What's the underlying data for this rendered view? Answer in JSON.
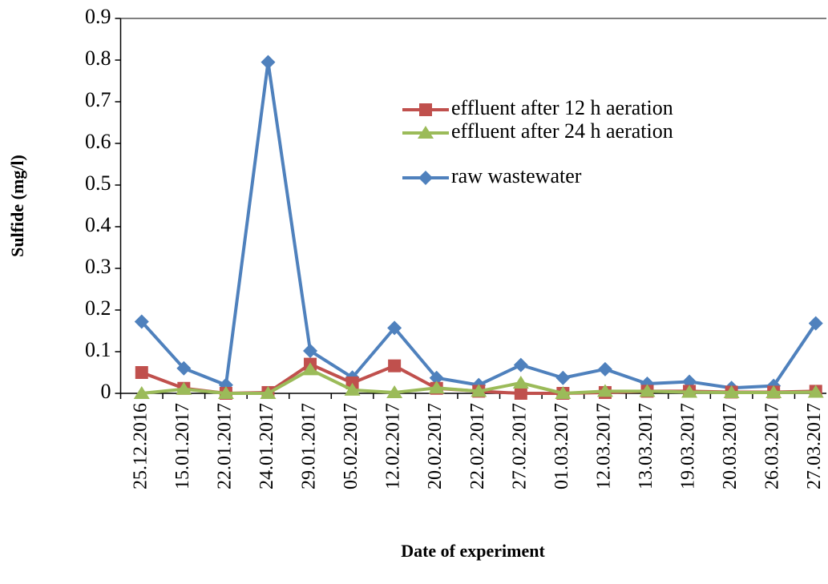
{
  "chart_data": {
    "type": "line",
    "x_label": "Date of experiment",
    "y_label": "Sulfide (mg/l)",
    "categories": [
      "25.12.2016",
      "15.01.2017",
      "22.01.2017",
      "24.01.2017",
      "29.01.2017",
      "05.02.2017",
      "12.02.2017",
      "20.02.2017",
      "22.02.2017",
      "27.02.2017",
      "01.03.2017",
      "12.03.2017",
      "13.03.2017",
      "19.03.2017",
      "20.03.2017",
      "26.03.2017",
      "27.03.2017"
    ],
    "series": [
      {
        "name": "effluent after 12 h aeration",
        "color": "#c0504d",
        "marker": "square",
        "values": [
          0.05,
          0.012,
          0,
          0.002,
          0.07,
          0.025,
          0.066,
          0.012,
          0.005,
          0,
          0,
          0.002,
          0.005,
          0.005,
          0.003,
          0.003,
          0.005
        ]
      },
      {
        "name": "effluent after 24 h aeration",
        "color": "#9bbb59",
        "marker": "triangle",
        "values": [
          0,
          0.01,
          0,
          0,
          0.057,
          0.008,
          0.002,
          0.013,
          0.005,
          0.025,
          0,
          0.005,
          0.005,
          0.003,
          0.002,
          0.002,
          0.003
        ]
      },
      {
        "name": "raw wastewater",
        "color": "#4f81bd",
        "marker": "diamond",
        "values": [
          0.172,
          0.06,
          0.02,
          0.795,
          0.102,
          0.038,
          0.157,
          0.037,
          0.02,
          0.068,
          0.037,
          0.058,
          0.023,
          0.028,
          0.013,
          0.018,
          0.168
        ]
      }
    ],
    "ylim": [
      0,
      0.9
    ],
    "yticks": [
      0,
      0.1,
      0.2,
      0.3,
      0.4,
      0.5,
      0.6,
      0.7,
      0.8,
      0.9
    ],
    "grid": false,
    "legend": "upper right"
  }
}
